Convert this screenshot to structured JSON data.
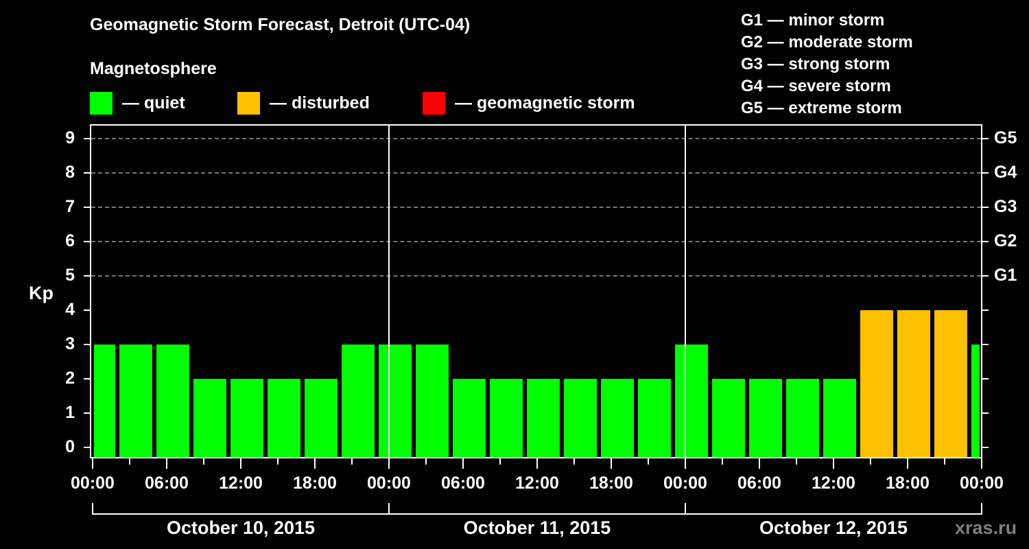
{
  "title": "Geomagnetic Storm Forecast, Detroit (UTC-04)",
  "subtitle": "Magnetosphere",
  "legend": [
    {
      "label": "— quiet",
      "color": "#00ff00"
    },
    {
      "label": "— disturbed",
      "color": "#ffc000"
    },
    {
      "label": "— geomagnetic storm",
      "color": "#ff0000"
    }
  ],
  "g_legend": [
    "G1 — minor storm",
    "G2 — moderate storm",
    "G3 — strong storm",
    "G4 — severe storm",
    "G5 — extreme storm"
  ],
  "y_axis": {
    "label": "Kp",
    "ticks": [
      "0",
      "1",
      "2",
      "3",
      "4",
      "5",
      "6",
      "7",
      "8",
      "9"
    ]
  },
  "g_axis": [
    {
      "label": "G1",
      "kp": 5
    },
    {
      "label": "G2",
      "kp": 6
    },
    {
      "label": "G3",
      "kp": 7
    },
    {
      "label": "G4",
      "kp": 8
    },
    {
      "label": "G5",
      "kp": 9
    }
  ],
  "x_axis": {
    "ticks": [
      "00:00",
      "06:00",
      "12:00",
      "18:00",
      "00:00",
      "06:00",
      "12:00",
      "18:00",
      "00:00",
      "06:00",
      "12:00",
      "18:00",
      "00:00"
    ]
  },
  "dates": [
    "October 10, 2015",
    "October 11, 2015",
    "October 12, 2015"
  ],
  "watermark": "xras.ru",
  "colors": {
    "quiet": "#00ff00",
    "disturbed": "#ffc000",
    "storm": "#ff0000",
    "grid": "#777777"
  },
  "chart_data": {
    "type": "bar",
    "title": "Geomagnetic Storm Forecast, Detroit (UTC-04)",
    "xlabel": "",
    "ylabel": "Kp",
    "ylim": [
      0,
      9
    ],
    "grid": true,
    "legend_position": "top",
    "categories": [
      "Oct 10 ~00:00 (partial)",
      "Oct 10 02:00",
      "Oct 10 05:00",
      "Oct 10 08:00",
      "Oct 10 11:00",
      "Oct 10 14:00",
      "Oct 10 17:00",
      "Oct 10 20:00",
      "Oct 10 23:00",
      "Oct 11 02:00",
      "Oct 11 05:00",
      "Oct 11 08:00",
      "Oct 11 11:00",
      "Oct 11 14:00",
      "Oct 11 17:00",
      "Oct 11 20:00",
      "Oct 11 23:00",
      "Oct 12 02:00",
      "Oct 12 05:00",
      "Oct 12 08:00",
      "Oct 12 11:00",
      "Oct 12 14:00",
      "Oct 12 17:00",
      "Oct 12 20:00",
      "Oct 12 23:00 (partial)"
    ],
    "values": [
      3,
      3,
      3,
      2,
      2,
      2,
      2,
      3,
      3,
      3,
      2,
      2,
      2,
      2,
      2,
      2,
      3,
      2,
      2,
      2,
      2,
      4,
      4,
      4,
      3
    ],
    "status": [
      "quiet",
      "quiet",
      "quiet",
      "quiet",
      "quiet",
      "quiet",
      "quiet",
      "quiet",
      "quiet",
      "quiet",
      "quiet",
      "quiet",
      "quiet",
      "quiet",
      "quiet",
      "quiet",
      "quiet",
      "quiet",
      "quiet",
      "quiet",
      "quiet",
      "disturbed",
      "disturbed",
      "disturbed",
      "quiet"
    ],
    "secondary_axis": {
      "G1": 5,
      "G2": 6,
      "G3": 7,
      "G4": 8,
      "G5": 9
    },
    "legend": [
      "quiet",
      "disturbed",
      "geomagnetic storm"
    ]
  }
}
